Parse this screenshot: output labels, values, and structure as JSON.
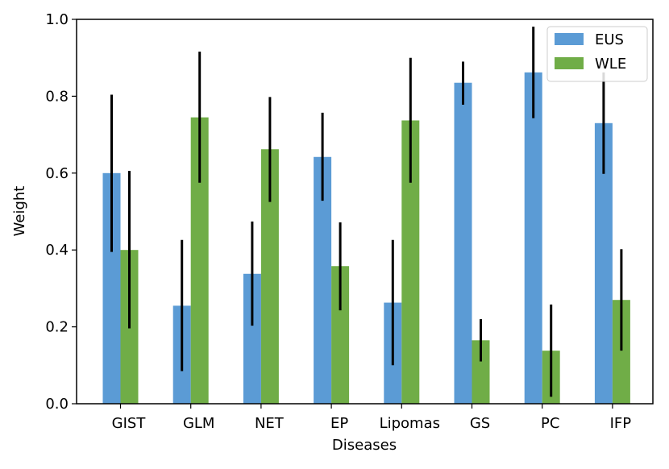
{
  "chart_data": {
    "type": "bar",
    "title": "",
    "xlabel": "Diseases",
    "ylabel": "Weight",
    "ylim": [
      0,
      1.0
    ],
    "yticks": [
      "0.0",
      "0.2",
      "0.4",
      "0.6",
      "0.8",
      "1.0"
    ],
    "categories": [
      "GIST",
      "GLM",
      "NET",
      "EP",
      "Lipomas",
      "GS",
      "PC",
      "IFP"
    ],
    "series": [
      {
        "name": "EUS",
        "color": "#5b9bd5",
        "values": [
          0.6,
          0.255,
          0.338,
          0.642,
          0.263,
          0.835,
          0.862,
          0.73
        ],
        "err_low": [
          0.395,
          0.085,
          0.203,
          0.528,
          0.1,
          0.778,
          0.743,
          0.598
        ],
        "err_high": [
          0.804,
          0.426,
          0.474,
          0.757,
          0.426,
          0.89,
          0.981,
          0.862
        ]
      },
      {
        "name": "WLE",
        "color": "#70ad47",
        "values": [
          0.4,
          0.745,
          0.662,
          0.358,
          0.737,
          0.165,
          0.138,
          0.27
        ],
        "err_low": [
          0.196,
          0.575,
          0.525,
          0.243,
          0.575,
          0.11,
          0.018,
          0.138
        ],
        "err_high": [
          0.606,
          0.916,
          0.798,
          0.472,
          0.9,
          0.22,
          0.258,
          0.402
        ]
      }
    ],
    "legend_position": "top-right"
  }
}
